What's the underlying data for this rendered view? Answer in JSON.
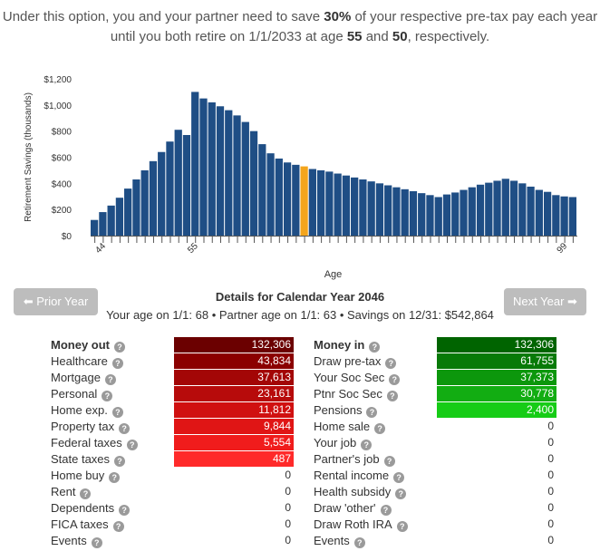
{
  "intro": {
    "line1_pre": "Under this option, you and your partner need to save ",
    "line1_pct": "30%",
    "line1_post": " of your respective pre-tax pay each year",
    "line2_pre": "until you both retire on 1/1/2033 at age ",
    "line2_age1": "55",
    "line2_mid": " and ",
    "line2_age2": "50",
    "line2_post": ", respectively."
  },
  "chart_data": {
    "type": "bar",
    "ylabel": "Retirement Savings (thousands)",
    "xlabel": "Age",
    "ylim": [
      0,
      1200
    ],
    "yticks": [
      "$0",
      "$200",
      "$400",
      "$600",
      "$800",
      "$1,000",
      "$1,200"
    ],
    "xtick_labels": [
      {
        "age": 44,
        "label": "44"
      },
      {
        "age": 55,
        "label": "55"
      },
      {
        "age": 99,
        "label": "99"
      }
    ],
    "highlight_age": 68,
    "bar_color": "#1f4e85",
    "highlight_color": "#f4a51c",
    "ages": [
      43,
      44,
      45,
      46,
      47,
      48,
      49,
      50,
      51,
      52,
      53,
      54,
      55,
      56,
      57,
      58,
      59,
      60,
      61,
      62,
      63,
      64,
      65,
      66,
      67,
      68,
      69,
      70,
      71,
      72,
      73,
      74,
      75,
      76,
      77,
      78,
      79,
      80,
      81,
      82,
      83,
      84,
      85,
      86,
      87,
      88,
      89,
      90,
      91,
      92,
      93,
      94,
      95,
      96,
      97,
      98,
      99,
      100
    ],
    "values": [
      120,
      180,
      230,
      290,
      360,
      430,
      500,
      570,
      640,
      720,
      810,
      770,
      1100,
      1050,
      1020,
      990,
      960,
      920,
      870,
      800,
      700,
      630,
      590,
      560,
      542,
      530,
      510,
      500,
      490,
      475,
      460,
      445,
      430,
      415,
      400,
      385,
      370,
      355,
      340,
      325,
      310,
      295,
      315,
      330,
      350,
      370,
      390,
      405,
      420,
      435,
      420,
      400,
      375,
      350,
      335,
      310,
      300,
      295
    ]
  },
  "nav": {
    "prior": "Prior Year",
    "next": "Next Year"
  },
  "details": {
    "title": "Details for Calendar Year 2046",
    "subtitle": "Your age on 1/1: 68 • Partner age on 1/1: 63 • Savings on 12/31: $542,864"
  },
  "money_out": {
    "header": "Money out",
    "header_value": "132,306",
    "rows": [
      {
        "label": "Healthcare",
        "value": "43,834",
        "color": "#8b0000"
      },
      {
        "label": "Mortgage",
        "value": "37,613",
        "color": "#a30606"
      },
      {
        "label": "Personal",
        "value": "23,161",
        "color": "#b70b0b"
      },
      {
        "label": "Home exp.",
        "value": "11,812",
        "color": "#d01010"
      },
      {
        "label": "Property tax",
        "value": "9,844",
        "color": "#e01515"
      },
      {
        "label": "Federal taxes",
        "value": "5,554",
        "color": "#f01c1c"
      },
      {
        "label": "State taxes",
        "value": "487",
        "color": "#ff2a2a"
      },
      {
        "label": "Home buy",
        "value": "0",
        "color": ""
      },
      {
        "label": "Rent",
        "value": "0",
        "color": ""
      },
      {
        "label": "Dependents",
        "value": "0",
        "color": ""
      },
      {
        "label": "FICA taxes",
        "value": "0",
        "color": ""
      },
      {
        "label": "Events",
        "value": "0",
        "color": ""
      }
    ],
    "header_color": "#6b0000"
  },
  "money_in": {
    "header": "Money in",
    "header_value": "132,306",
    "rows": [
      {
        "label": "Draw pre-tax",
        "value": "61,755",
        "color": "#087a08"
      },
      {
        "label": "Your Soc Sec",
        "value": "37,373",
        "color": "#0c970c"
      },
      {
        "label": "Ptnr Soc Sec",
        "value": "30,778",
        "color": "#12ad12"
      },
      {
        "label": "Pensions",
        "value": "2,400",
        "color": "#16cc16"
      },
      {
        "label": "Home sale",
        "value": "0",
        "color": ""
      },
      {
        "label": "Your job",
        "value": "0",
        "color": ""
      },
      {
        "label": "Partner's job",
        "value": "0",
        "color": ""
      },
      {
        "label": "Rental income",
        "value": "0",
        "color": ""
      },
      {
        "label": "Health subsidy",
        "value": "0",
        "color": ""
      },
      {
        "label": "Draw 'other'",
        "value": "0",
        "color": ""
      },
      {
        "label": "Draw Roth IRA",
        "value": "0",
        "color": ""
      },
      {
        "label": "Events",
        "value": "0",
        "color": ""
      }
    ],
    "header_color": "#006400"
  },
  "help_icon": "question-circle-icon"
}
